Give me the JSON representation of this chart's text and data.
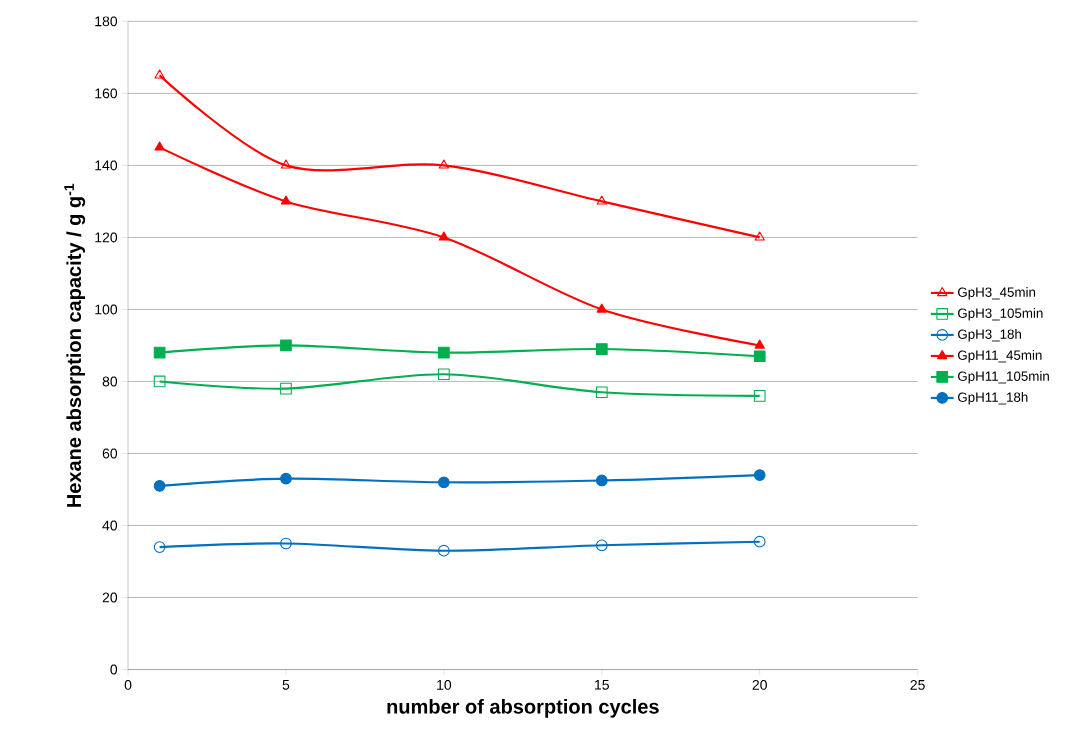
{
  "chart_data": {
    "type": "line",
    "xlabel": "number of  absorption cycles",
    "ylabel": "Hexane absorption capacity / g g$^{-1}$",
    "x": [
      1,
      5,
      10,
      15,
      20
    ],
    "xlim": [
      0,
      25
    ],
    "xticks": [
      0,
      5,
      10,
      15,
      20,
      25
    ],
    "ylim": [
      0,
      180
    ],
    "yticks": [
      0,
      20,
      40,
      60,
      80,
      100,
      120,
      140,
      160,
      180
    ],
    "grid": "y",
    "legend": "right",
    "series": [
      {
        "name": "GpH3_45min",
        "color": "#ff0000",
        "marker": "triangle",
        "values": [
          165,
          140,
          140,
          130,
          120
        ]
      },
      {
        "name": "GpH3_105min",
        "color": "#00b050",
        "marker": "square",
        "values": [
          80,
          78,
          82,
          77,
          76
        ]
      },
      {
        "name": "GpH3_18h",
        "color": "#0070c0",
        "marker": "circle",
        "values": [
          34,
          35,
          33,
          34.5,
          35.5
        ]
      },
      {
        "name": "GpH11_45min",
        "color": "#ff0000",
        "marker": "triangle",
        "values": [
          145,
          130,
          120,
          100,
          90
        ]
      },
      {
        "name": "GpH11_105min",
        "color": "#00b050",
        "marker": "square",
        "values": [
          88,
          90,
          88,
          89,
          87
        ]
      },
      {
        "name": "GpH11_18h",
        "color": "#0070c0",
        "marker": "circle",
        "values": [
          51,
          53,
          52,
          52.5,
          54
        ]
      }
    ]
  }
}
